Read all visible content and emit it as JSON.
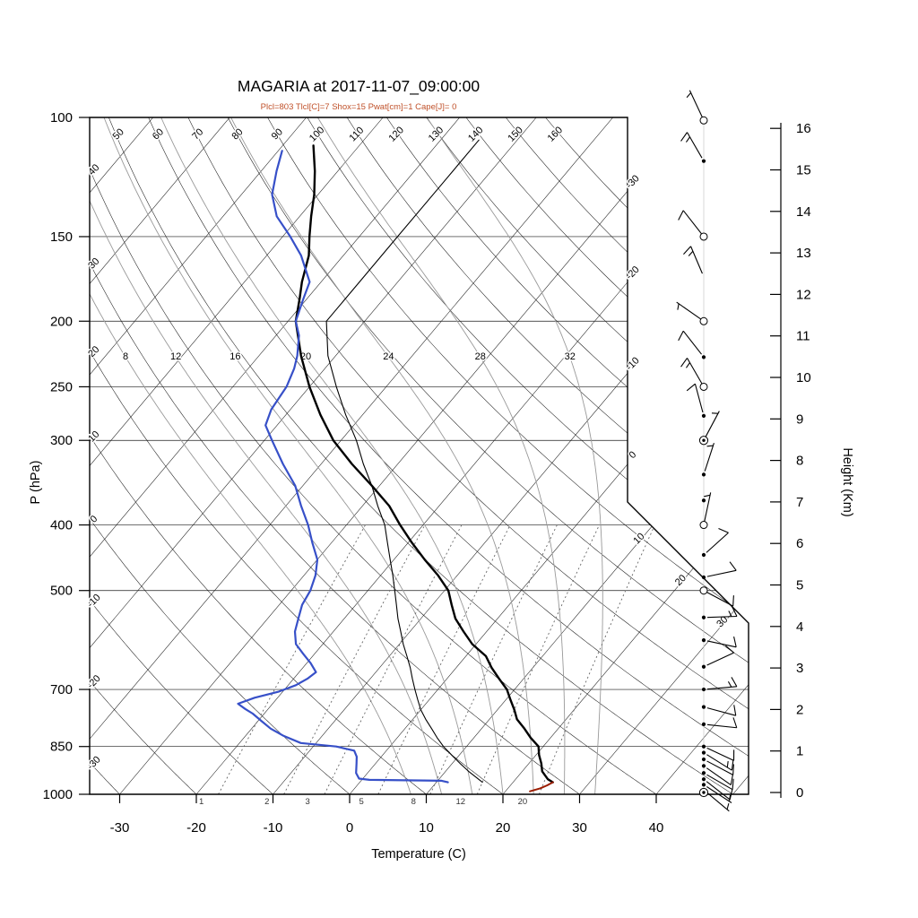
{
  "title": "MAGARIA at 2017-11-07_09:00:00",
  "subtitle": "Plcl=803 Tlcl[C]=7 Shox=15 Pwat[cm]=1 Cape[J]= 0",
  "colors": {
    "subtitle": "#c0512a",
    "temperature_curve": "#000000",
    "dewpoint_curve": "#3750c8",
    "wetbulb_curve": "#000000",
    "parcel_curve": "#9b1c00",
    "moist_adiabat": "#999999",
    "mixing_ratio": "#666666",
    "grid": "#1a1a1a"
  },
  "axes": {
    "pressure": {
      "label": "P (hPa)",
      "ticks": [
        100,
        150,
        200,
        250,
        300,
        400,
        500,
        700,
        850,
        1000
      ]
    },
    "temperature": {
      "label": "Temperature (C)",
      "ticks": [
        -30,
        -20,
        -10,
        0,
        10,
        20,
        30,
        40
      ]
    },
    "height": {
      "label": "Height (Km)",
      "ticks": [
        0,
        1,
        2,
        3,
        4,
        5,
        6,
        7,
        8,
        9,
        10,
        11,
        12,
        13,
        14,
        15,
        16
      ]
    }
  },
  "chart_data": {
    "type": "line",
    "diagram": "skew-t_log-p_sounding",
    "station": "MAGARIA",
    "valid_time": "2017-11-07_09:00:00",
    "indices": {
      "Plcl": 803,
      "Tlcl_C": 7,
      "Shox": 15,
      "Pwat_cm": 1,
      "Cape_J": 0
    },
    "background": {
      "isotherms": {
        "min": -120,
        "max": 60,
        "step": 10,
        "upper_right_labels": [
          -30,
          -20,
          -10,
          0
        ],
        "lower_right_labels": [
          10,
          20,
          30
        ]
      },
      "dry_adiabats": {
        "min": -30,
        "max": 160,
        "step": 10,
        "left_edge_labels": [
          -30,
          -20,
          -10,
          0,
          10,
          20,
          30,
          40
        ],
        "top_edge_labels": [
          50,
          60,
          70,
          80,
          90,
          100,
          110,
          120,
          130,
          140,
          150,
          160
        ]
      },
      "moist_adiabats": {
        "values": [
          8,
          12,
          16,
          20,
          24,
          28,
          32
        ],
        "label_pressure_hpa": 225
      },
      "mixing_ratio_g_per_kg": {
        "values": [
          1,
          2,
          3,
          5,
          8,
          12,
          20
        ]
      }
    },
    "series": [
      {
        "name": "temperature",
        "color": "#000000",
        "width": 2.4,
        "points": [
          [
            960,
            25.2
          ],
          [
            950,
            24.2
          ],
          [
            925,
            22.6
          ],
          [
            900,
            21.6
          ],
          [
            875,
            20.4
          ],
          [
            850,
            19.4
          ],
          [
            825,
            17.4
          ],
          [
            800,
            15.6
          ],
          [
            775,
            13.6
          ],
          [
            750,
            12.2
          ],
          [
            725,
            10.6
          ],
          [
            700,
            9.0
          ],
          [
            675,
            6.8
          ],
          [
            650,
            4.6
          ],
          [
            625,
            2.6
          ],
          [
            600,
            -0.5
          ],
          [
            575,
            -3.0
          ],
          [
            550,
            -5.5
          ],
          [
            525,
            -7.5
          ],
          [
            500,
            -9.5
          ],
          [
            475,
            -12.5
          ],
          [
            450,
            -16.0
          ],
          [
            425,
            -19.5
          ],
          [
            400,
            -23.0
          ],
          [
            375,
            -26.5
          ],
          [
            350,
            -31.0
          ],
          [
            325,
            -36.0
          ],
          [
            300,
            -41.0
          ],
          [
            275,
            -45.5
          ],
          [
            250,
            -50.0
          ],
          [
            225,
            -54.5
          ],
          [
            200,
            -59.0
          ],
          [
            185,
            -61.0
          ],
          [
            175,
            -62.5
          ],
          [
            160,
            -64.5
          ],
          [
            150,
            -66.5
          ],
          [
            140,
            -68.5
          ],
          [
            130,
            -70.5
          ],
          [
            120,
            -73.0
          ],
          [
            110,
            -76.0
          ]
        ]
      },
      {
        "name": "dewpoint",
        "color": "#3750c8",
        "width": 2.2,
        "points": [
          [
            960,
            11.5
          ],
          [
            955,
            10.5
          ],
          [
            952,
            1.0
          ],
          [
            948,
            -0.5
          ],
          [
            930,
            -1.5
          ],
          [
            900,
            -2.5
          ],
          [
            880,
            -3.2
          ],
          [
            862,
            -4.2
          ],
          [
            850,
            -7.0
          ],
          [
            840,
            -12.0
          ],
          [
            820,
            -15.0
          ],
          [
            800,
            -17.5
          ],
          [
            780,
            -19.5
          ],
          [
            760,
            -21.5
          ],
          [
            748,
            -23.0
          ],
          [
            735,
            -24.5
          ],
          [
            720,
            -23.0
          ],
          [
            705,
            -20.5
          ],
          [
            690,
            -19.0
          ],
          [
            675,
            -18.2
          ],
          [
            660,
            -17.8
          ],
          [
            640,
            -19.5
          ],
          [
            620,
            -21.5
          ],
          [
            600,
            -23.5
          ],
          [
            575,
            -25.0
          ],
          [
            550,
            -26.0
          ],
          [
            525,
            -27.0
          ],
          [
            500,
            -27.5
          ],
          [
            475,
            -28.5
          ],
          [
            450,
            -30.0
          ],
          [
            425,
            -32.5
          ],
          [
            400,
            -35.0
          ],
          [
            375,
            -38.0
          ],
          [
            350,
            -41.0
          ],
          [
            325,
            -45.0
          ],
          [
            300,
            -49.0
          ],
          [
            285,
            -51.5
          ],
          [
            270,
            -52.5
          ],
          [
            250,
            -53.0
          ],
          [
            235,
            -54.0
          ],
          [
            225,
            -55.0
          ],
          [
            210,
            -57.0
          ],
          [
            200,
            -59.0
          ],
          [
            185,
            -60.5
          ],
          [
            175,
            -61.5
          ],
          [
            160,
            -65.5
          ],
          [
            150,
            -69.0
          ],
          [
            140,
            -73.0
          ],
          [
            130,
            -76.0
          ],
          [
            120,
            -78.0
          ],
          [
            112,
            -79.5
          ]
        ]
      },
      {
        "name": "wetbulb",
        "color": "#000000",
        "width": 1.1,
        "points": [
          [
            960,
            16.0
          ],
          [
            925,
            13.0
          ],
          [
            900,
            11.0
          ],
          [
            875,
            9.0
          ],
          [
            850,
            7.0
          ],
          [
            825,
            5.2
          ],
          [
            800,
            3.5
          ],
          [
            775,
            1.7
          ],
          [
            750,
            0.0
          ],
          [
            725,
            -1.5
          ],
          [
            700,
            -3.0
          ],
          [
            675,
            -4.5
          ],
          [
            650,
            -6.0
          ],
          [
            625,
            -7.7
          ],
          [
            600,
            -9.5
          ],
          [
            575,
            -11.2
          ],
          [
            550,
            -13.0
          ],
          [
            525,
            -14.7
          ],
          [
            500,
            -16.5
          ],
          [
            475,
            -18.4
          ],
          [
            450,
            -20.5
          ],
          [
            425,
            -22.7
          ],
          [
            400,
            -25.0
          ],
          [
            375,
            -28.0
          ],
          [
            350,
            -31.0
          ],
          [
            325,
            -34.5
          ],
          [
            300,
            -38.0
          ],
          [
            275,
            -42.2
          ],
          [
            250,
            -46.5
          ],
          [
            225,
            -51.0
          ],
          [
            200,
            -55.0
          ],
          [
            175,
            -55.0
          ],
          [
            150,
            -55.0
          ],
          [
            125,
            -55.0
          ],
          [
            108,
            -55.0
          ]
        ]
      },
      {
        "name": "parcel",
        "color": "#9b1c00",
        "width": 2.0,
        "points": [
          [
            990,
            23.2
          ],
          [
            980,
            24.2
          ],
          [
            970,
            24.8
          ],
          [
            960,
            25.2
          ]
        ]
      }
    ],
    "wind_barbs": {
      "column": "right",
      "barbs": [
        {
          "p": 101,
          "dir": 115,
          "spd": 5,
          "marker": "circle"
        },
        {
          "p": 116,
          "dir": 120,
          "spd": 15,
          "marker": "dot"
        },
        {
          "p": 150,
          "dir": 128,
          "spd": 10,
          "marker": "circle"
        },
        {
          "p": 172,
          "dir": 113,
          "spd": 15,
          "marker": "none"
        },
        {
          "p": 200,
          "dir": 145,
          "spd": 5,
          "marker": "circle"
        },
        {
          "p": 226,
          "dir": 128,
          "spd": 10,
          "marker": "dot"
        },
        {
          "p": 250,
          "dir": 120,
          "spd": 15,
          "marker": "circle"
        },
        {
          "p": 276,
          "dir": 105,
          "spd": 10,
          "marker": "dot"
        },
        {
          "p": 300,
          "dir": 62,
          "spd": 5,
          "marker": "dblcircle"
        },
        {
          "p": 337,
          "dir": 72,
          "spd": 5,
          "marker": "dot"
        },
        {
          "p": 368,
          "dir": 0,
          "spd": 0,
          "marker": "dot"
        },
        {
          "p": 400,
          "dir": 78,
          "spd": 5,
          "marker": "circle"
        },
        {
          "p": 443,
          "dir": 42,
          "spd": 10,
          "marker": "dot"
        },
        {
          "p": 478,
          "dir": 12,
          "spd": 10,
          "marker": "dot"
        },
        {
          "p": 500,
          "dir": -28,
          "spd": 10,
          "marker": "circle"
        },
        {
          "p": 548,
          "dir": 2,
          "spd": 15,
          "marker": "dot"
        },
        {
          "p": 592,
          "dir": -12,
          "spd": 10,
          "marker": "dot"
        },
        {
          "p": 648,
          "dir": 25,
          "spd": 10,
          "marker": "dot"
        },
        {
          "p": 700,
          "dir": 5,
          "spd": 15,
          "marker": "dot"
        },
        {
          "p": 743,
          "dir": -15,
          "spd": 10,
          "marker": "dot"
        },
        {
          "p": 788,
          "dir": -6,
          "spd": 10,
          "marker": "dot"
        },
        {
          "p": 850,
          "dir": -25,
          "spd": 12,
          "marker": "dot"
        },
        {
          "p": 868,
          "dir": -32,
          "spd": 15,
          "marker": "dot"
        },
        {
          "p": 888,
          "dir": -28,
          "spd": 10,
          "marker": "dot"
        },
        {
          "p": 908,
          "dir": -35,
          "spd": 10,
          "marker": "dot"
        },
        {
          "p": 930,
          "dir": -30,
          "spd": 10,
          "marker": "dot"
        },
        {
          "p": 950,
          "dir": -38,
          "spd": 10,
          "marker": "dot"
        },
        {
          "p": 968,
          "dir": -33,
          "spd": 7,
          "marker": "dot"
        },
        {
          "p": 985,
          "dir": -40,
          "spd": 5,
          "marker": "dot"
        },
        {
          "p": 1000,
          "dir": 0,
          "spd": 0,
          "marker": "dblcircle"
        }
      ]
    }
  }
}
